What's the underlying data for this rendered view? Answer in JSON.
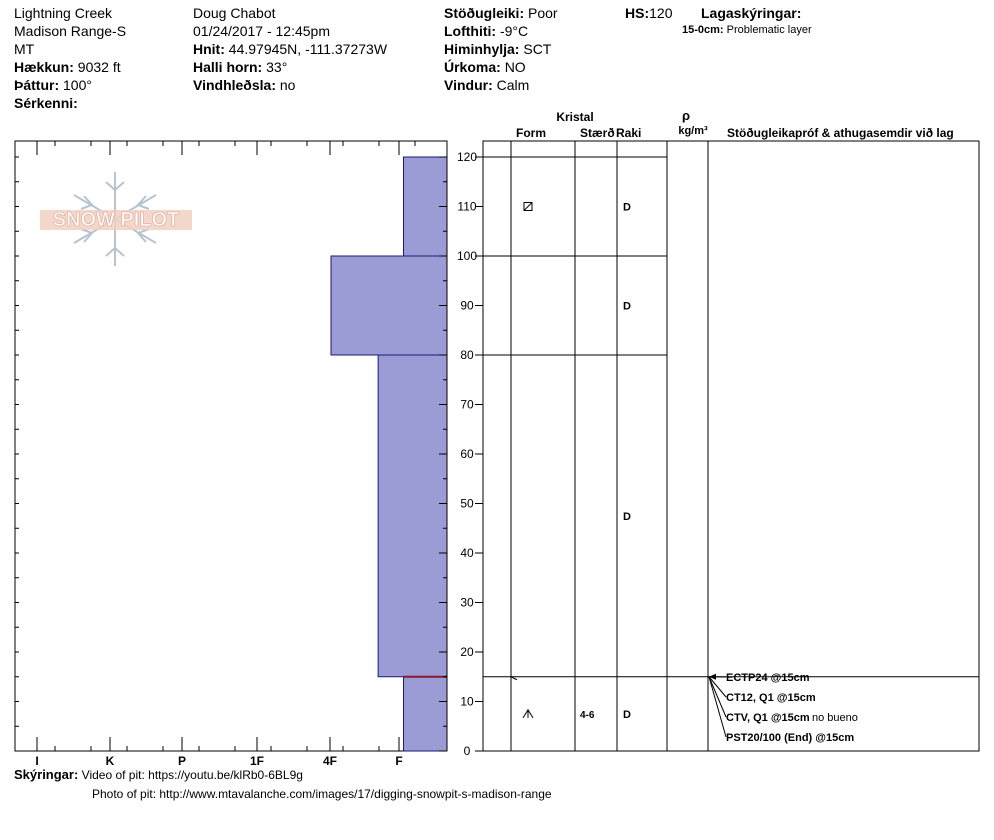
{
  "header": {
    "location": "Lightning Creek",
    "range": "Madison Range-S",
    "state": "MT",
    "elevation_label": "Hækkun:",
    "elevation_value": "9032 ft",
    "aspect_label": "Þáttur:",
    "aspect_value": "100°",
    "features_label": "Sérkenni:",
    "features_value": "",
    "observer": "Doug Chabot",
    "datetime": "01/24/2017 - 12:45pm",
    "coords_label": "Hnit:",
    "coords_value": "44.97945N, -111.37273W",
    "slope_label": "Halli horn:",
    "slope_value": "33°",
    "wind_loading_label": "Vindhleðsla:",
    "wind_loading_value": "no",
    "stability_label": "Stöðugleiki:",
    "stability_value": "Poor",
    "air_temp_label": "Lofthiti:",
    "air_temp_value": "-9°C",
    "sky_label": "Himinhylja:",
    "sky_value": "SCT",
    "precip_label": "Úrkoma:",
    "precip_value": "NO",
    "wind_label": "Vindur:",
    "wind_value": "Calm",
    "hs_label": "HS:",
    "hs_value": "120",
    "legend_title": "Lagaskýringar:",
    "legend_item_depth": "15-0cm:",
    "legend_item_text": "Problematic layer"
  },
  "table_headers": {
    "kristal": "Kristal",
    "form": "Form",
    "size": "Stærð",
    "moisture": "Raki",
    "rho": "ρ",
    "density_unit": "kg/m³",
    "tests": "Stöðugleikapróf & athugasemdir við lag"
  },
  "chart_data": {
    "type": "bar",
    "ylim": [
      0,
      120
    ],
    "y_ticks": [
      "0",
      "10",
      "20",
      "30",
      "40",
      "50",
      "60",
      "70",
      "80",
      "90",
      "100",
      "110",
      "120"
    ],
    "hardness_scale": [
      "I",
      "K",
      "P",
      "1F",
      "4F",
      "F"
    ],
    "hardness_note": "hardness index 0 = F (right edge), 6 = I (left edge)",
    "layers": [
      {
        "top": 120,
        "bottom": 100,
        "hardness": "F"
      },
      {
        "top": 100,
        "bottom": 80,
        "hardness": "4F"
      },
      {
        "top": 80,
        "bottom": 15,
        "hardness": "F+"
      },
      {
        "top": 15,
        "bottom": 0,
        "hardness": "F"
      }
    ],
    "hardness_values": [
      0.6,
      1.6,
      0.95,
      0.6
    ],
    "problem_layer_depth": 15,
    "layer_rows": [
      {
        "top": 120,
        "bottom": 100,
        "form_icon": "facet-rounded-icon",
        "size": "",
        "moisture": "D"
      },
      {
        "top": 100,
        "bottom": 80,
        "form_icon": "",
        "size": "",
        "moisture": "D"
      },
      {
        "top": 80,
        "bottom": 15,
        "form_icon": "",
        "size": "",
        "moisture": "D"
      },
      {
        "top": 15,
        "bottom": 0,
        "form_icon": "depth-hoar-icon",
        "size": "4-6",
        "moisture": "D"
      }
    ],
    "tests": [
      {
        "label": "ECTP24 @15cm",
        "note": ""
      },
      {
        "label": "CT12, Q1 @15cm",
        "note": ""
      },
      {
        "label": "CTV, Q1 @15cm",
        "note": "no bueno"
      },
      {
        "label": "PST20/100 (End) @15cm",
        "note": ""
      }
    ],
    "colors": {
      "fill": "#9b9bd6",
      "stroke": "#1a1a7a",
      "problem": "#8b1a2a"
    }
  },
  "logo_text": "SNOW PILOT",
  "footer": {
    "label": "Skýringar:",
    "line1": "Video of pit: https://youtu.be/klRb0-6BL9g",
    "line2": "Photo of pit: http://www.mtavalanche.com/images/17/digging-snowpit-s-madison-range"
  }
}
